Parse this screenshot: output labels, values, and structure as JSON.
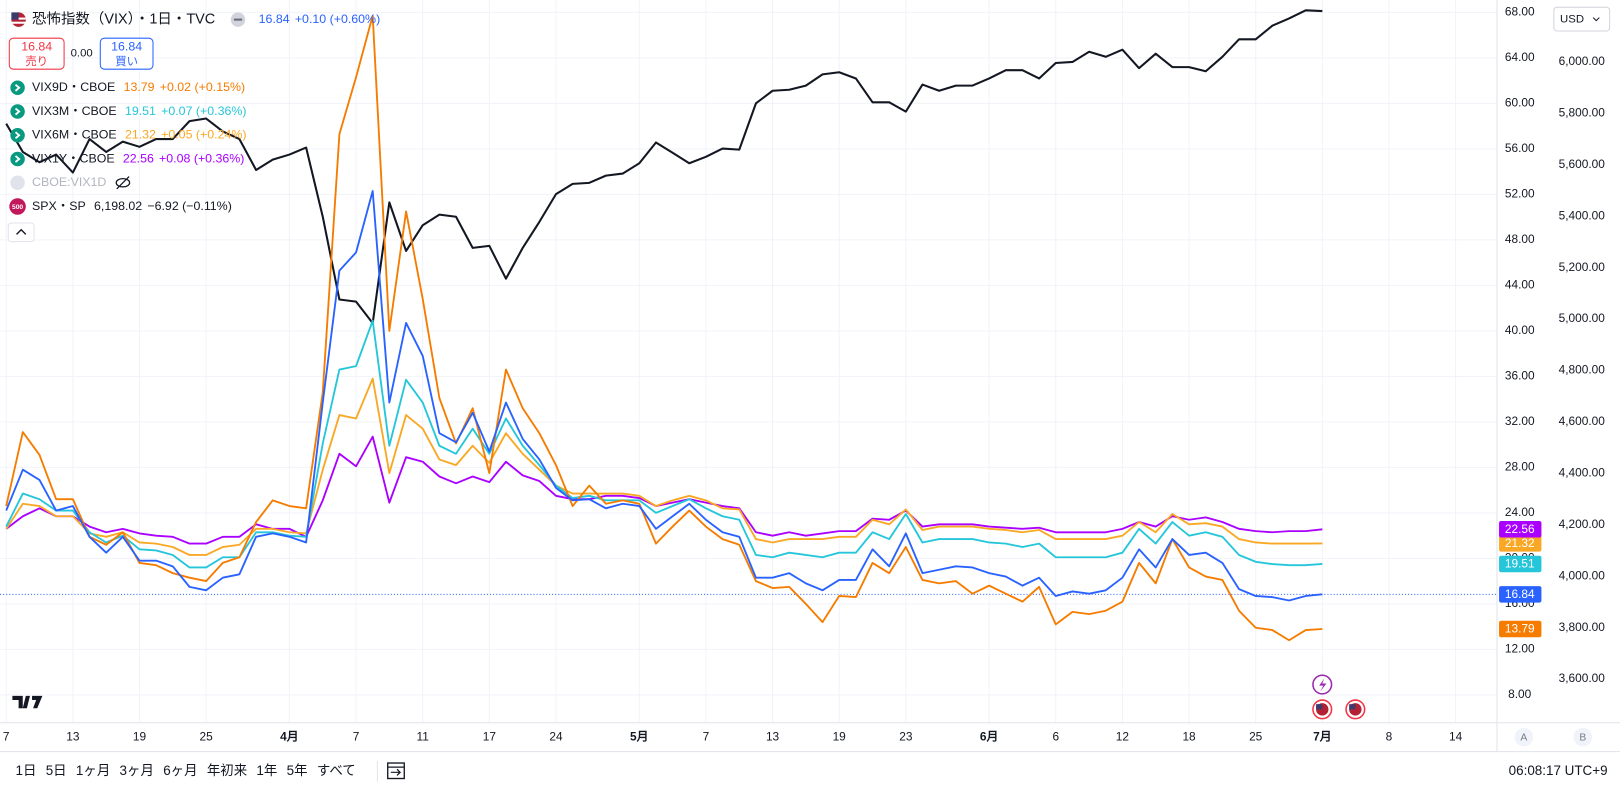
{
  "chart_data": {
    "type": "line",
    "categories": [
      "7",
      null,
      null,
      null,
      "13",
      null,
      null,
      null,
      "19",
      null,
      null,
      null,
      "25",
      null,
      null,
      null,
      null,
      "4月",
      null,
      null,
      null,
      "7",
      null,
      null,
      null,
      "11",
      null,
      null,
      null,
      "17",
      null,
      null,
      null,
      "24",
      null,
      null,
      null,
      null,
      "5月",
      null,
      null,
      null,
      "7",
      null,
      null,
      null,
      "13",
      null,
      null,
      null,
      "19",
      null,
      null,
      null,
      "23",
      null,
      null,
      null,
      null,
      "6月",
      null,
      null,
      null,
      "6",
      null,
      null,
      null,
      "12",
      null,
      null,
      null,
      "18",
      null,
      null,
      null,
      "25",
      null,
      null,
      null,
      "7月",
      null,
      null,
      null,
      "8",
      null,
      null,
      null,
      "14"
    ],
    "ylim": [
      5.55,
      69.09
    ],
    "yticks": [
      {
        "value": 8,
        "label": "8.00"
      },
      {
        "value": 12,
        "label": "12.00"
      },
      {
        "value": 16,
        "label": "16.00"
      },
      {
        "value": 20,
        "label": "20.00"
      },
      {
        "value": 24,
        "label": "24.00"
      },
      {
        "value": 28,
        "label": "28.00"
      },
      {
        "value": 32,
        "label": "32.00"
      },
      {
        "value": 36,
        "label": "36.00"
      },
      {
        "value": 40,
        "label": "40.00"
      },
      {
        "value": 44,
        "label": "44.00"
      },
      {
        "value": 48,
        "label": "48.00"
      },
      {
        "value": 52,
        "label": "52.00"
      },
      {
        "value": 56,
        "label": "56.00"
      },
      {
        "value": 60,
        "label": "60.00"
      },
      {
        "value": 64,
        "label": "64.00"
      },
      {
        "value": 68,
        "label": "68.00"
      }
    ],
    "y2lim": [
      3430,
      6241
    ],
    "y2ticks": [
      {
        "value": 3600,
        "label": "3,600.00"
      },
      {
        "value": 3800,
        "label": "3,800.00"
      },
      {
        "value": 4000,
        "label": "4,000.00"
      },
      {
        "value": 4200,
        "label": "4,200.00"
      },
      {
        "value": 4400,
        "label": "4,400.00"
      },
      {
        "value": 4600,
        "label": "4,600.00"
      },
      {
        "value": 4800,
        "label": "4,800.00"
      },
      {
        "value": 5000,
        "label": "5,000.00"
      },
      {
        "value": 5200,
        "label": "5,200.00"
      },
      {
        "value": 5400,
        "label": "5,400.00"
      },
      {
        "value": 5600,
        "label": "5,600.00"
      },
      {
        "value": 5800,
        "label": "5,800.00"
      },
      {
        "value": 6000,
        "label": "6,000.00"
      }
    ],
    "grid": true,
    "series": [
      {
        "name": "恐怖指数（VIX）・1日・TVC",
        "color": "#2962ff",
        "change": "+0.10 (+0.60%)",
        "values": [
          24.2,
          27.8,
          26.9,
          24.2,
          24.6,
          21.9,
          20.5,
          21.9,
          19.8,
          19.8,
          19.3,
          17.5,
          17.2,
          18.3,
          18.6,
          21.9,
          22.2,
          21.9,
          21.4,
          33.7,
          45.3,
          46.9,
          52.3,
          33.7,
          40.7,
          37.8,
          31.0,
          30.2,
          32.8,
          29.4,
          33.7,
          30.5,
          28.7,
          26.2,
          25.1,
          25.2,
          24.4,
          24.8,
          24.6,
          22.6,
          23.7,
          24.8,
          23.4,
          22.3,
          21.9,
          18.3,
          18.3,
          18.7,
          17.8,
          17.2,
          18.1,
          18.1,
          20.8,
          19.3,
          22.2,
          18.7,
          19.0,
          19.3,
          19.2,
          18.7,
          18.4,
          17.6,
          18.3,
          16.7,
          17.1,
          16.9,
          17.2,
          18.3,
          20.8,
          19.2,
          21.7,
          20.3,
          20.5,
          19.6,
          17.3,
          16.7,
          16.6,
          16.3,
          16.7,
          16.84,
          null,
          null,
          null,
          null,
          null,
          null,
          null,
          null
        ]
      },
      {
        "name": "VIX9D・CBOE",
        "color": "#f57c00",
        "change": "+0.02 (+0.15%)",
        "values": [
          24.6,
          31.1,
          29.1,
          25.2,
          25.2,
          21.9,
          21.2,
          22.3,
          19.6,
          19.4,
          18.7,
          18.3,
          18.0,
          19.6,
          20.1,
          23.2,
          25.1,
          24.6,
          24.4,
          34.6,
          57.3,
          62.3,
          67.7,
          40.0,
          50.5,
          42.8,
          34.1,
          30.1,
          33.2,
          27.5,
          36.6,
          33.2,
          31.0,
          28.2,
          24.6,
          26.4,
          24.8,
          25.1,
          24.8,
          21.3,
          22.8,
          24.2,
          22.8,
          21.7,
          21.2,
          18.0,
          17.4,
          17.5,
          16.0,
          14.4,
          16.7,
          16.6,
          19.6,
          18.7,
          21.0,
          18.1,
          17.8,
          18.0,
          16.9,
          17.6,
          16.9,
          16.2,
          17.5,
          14.2,
          15.3,
          15.1,
          15.4,
          16.2,
          19.6,
          17.8,
          21.7,
          19.2,
          18.4,
          18.1,
          15.4,
          13.9,
          13.7,
          12.8,
          13.7,
          13.79,
          null,
          null,
          null,
          null,
          null,
          null,
          null,
          null
        ]
      },
      {
        "name": "VIX3M・CBOE",
        "color": "#26c6da",
        "change": "+0.07 (+0.36%)",
        "values": [
          22.8,
          25.7,
          25.2,
          24.2,
          24.2,
          22.3,
          21.4,
          22.0,
          20.8,
          20.7,
          20.3,
          19.2,
          19.2,
          20.1,
          20.1,
          22.3,
          22.3,
          22.0,
          21.9,
          30.1,
          36.6,
          36.9,
          40.9,
          29.9,
          35.7,
          33.7,
          29.9,
          29.2,
          31.4,
          29.2,
          32.3,
          29.9,
          28.2,
          26.4,
          25.3,
          25.5,
          25.1,
          25.1,
          25.1,
          24.0,
          24.6,
          25.2,
          24.4,
          23.7,
          23.4,
          20.3,
          20.1,
          20.5,
          20.3,
          20.1,
          20.5,
          20.5,
          22.3,
          21.7,
          23.9,
          21.4,
          21.7,
          21.7,
          21.7,
          21.4,
          21.3,
          21.0,
          21.3,
          20.1,
          20.1,
          20.1,
          20.1,
          20.5,
          22.6,
          21.3,
          23.2,
          22.0,
          22.3,
          21.9,
          20.3,
          19.7,
          19.5,
          19.4,
          19.4,
          19.51,
          null,
          null,
          null,
          null,
          null,
          null,
          null,
          null
        ]
      },
      {
        "name": "VIX6M・CBOE",
        "color": "#f9a825",
        "change": "+0.05 (+0.24%)",
        "values": [
          22.6,
          24.8,
          24.6,
          23.7,
          23.7,
          22.2,
          21.9,
          22.3,
          21.4,
          21.3,
          21.0,
          20.3,
          20.3,
          21.0,
          21.2,
          22.6,
          22.6,
          22.3,
          22.2,
          27.8,
          32.6,
          32.3,
          35.8,
          27.5,
          32.6,
          31.4,
          28.7,
          28.2,
          29.9,
          28.4,
          31.0,
          29.2,
          27.8,
          26.4,
          25.7,
          25.7,
          25.7,
          25.7,
          25.5,
          24.6,
          25.1,
          25.5,
          25.1,
          24.4,
          24.3,
          21.7,
          21.4,
          21.7,
          21.7,
          21.7,
          21.9,
          21.9,
          23.4,
          23.0,
          24.3,
          22.5,
          22.8,
          22.8,
          22.8,
          22.6,
          22.5,
          22.3,
          22.5,
          21.7,
          21.7,
          21.7,
          21.7,
          22.0,
          23.2,
          22.3,
          23.9,
          23.0,
          23.1,
          22.8,
          21.7,
          21.4,
          21.3,
          21.3,
          21.3,
          21.32,
          null,
          null,
          null,
          null,
          null,
          null,
          null,
          null
        ]
      },
      {
        "name": "VIX1Y・CBOE",
        "color": "#aa00ff",
        "change": "+0.08 (+0.36%)",
        "values": [
          22.6,
          23.7,
          24.4,
          23.7,
          23.7,
          22.8,
          22.3,
          22.6,
          22.2,
          22.0,
          21.9,
          21.3,
          21.3,
          21.9,
          21.9,
          23.0,
          22.6,
          22.6,
          21.9,
          25.1,
          29.2,
          28.1,
          30.7,
          24.9,
          28.9,
          28.5,
          27.2,
          26.6,
          27.2,
          26.7,
          28.5,
          27.3,
          26.8,
          25.5,
          25.2,
          25.2,
          25.5,
          25.5,
          25.3,
          24.6,
          24.9,
          25.2,
          24.9,
          24.6,
          24.4,
          22.3,
          22.0,
          22.3,
          22.0,
          22.2,
          22.4,
          22.4,
          23.5,
          23.4,
          24.2,
          22.8,
          23.0,
          23.0,
          23.0,
          22.8,
          22.7,
          22.6,
          22.7,
          22.3,
          22.3,
          22.3,
          22.3,
          22.6,
          23.2,
          22.8,
          23.7,
          23.4,
          23.6,
          23.2,
          22.6,
          22.4,
          22.3,
          22.4,
          22.4,
          22.56,
          null,
          null,
          null,
          null,
          null,
          null,
          null,
          null
        ]
      },
      {
        "name": "SPX・SP",
        "color": "#131722",
        "axis": "y2",
        "icon_label": "500",
        "last_label": "6,198.02",
        "change": "−6.92 (−0.11%)",
        "values": [
          5760,
          5650,
          5610,
          5640,
          5570,
          5700,
          5650,
          5690,
          5670,
          5700,
          5700,
          5770,
          5780,
          5730,
          5700,
          5580,
          5620,
          5640,
          5667,
          5398,
          5076,
          5068,
          4984,
          5454,
          5265,
          5365,
          5406,
          5398,
          5277,
          5285,
          5157,
          5277,
          5378,
          5486,
          5526,
          5530,
          5558,
          5566,
          5606,
          5687,
          5647,
          5606,
          5631,
          5663,
          5659,
          5839,
          5888,
          5892,
          5908,
          5952,
          5960,
          5936,
          5843,
          5843,
          5807,
          5912,
          5888,
          5908,
          5908,
          5936,
          5968,
          5968,
          5936,
          5996,
          6000,
          6040,
          6020,
          6048,
          5976,
          6032,
          5980,
          5980,
          5964,
          6020,
          6088,
          6088,
          6141,
          6169,
          6201,
          6198.02,
          null,
          null,
          null,
          null,
          null,
          null,
          null,
          null
        ]
      }
    ],
    "hidden_series": "CBOE:VIX1D"
  },
  "ui": {
    "sell": {
      "price": "16.84",
      "label": "売り"
    },
    "spread": "0.00",
    "buy": {
      "price": "16.84",
      "label": "買い"
    },
    "currency": "USD",
    "scale_buttons": [
      "A",
      "B"
    ],
    "timeframes": [
      "1日",
      "5日",
      "1ヶ月",
      "3ヶ月",
      "6ヶ月",
      "年初来",
      "1年",
      "5年",
      "すべて"
    ],
    "clock": "06:08:17 UTC+9"
  }
}
